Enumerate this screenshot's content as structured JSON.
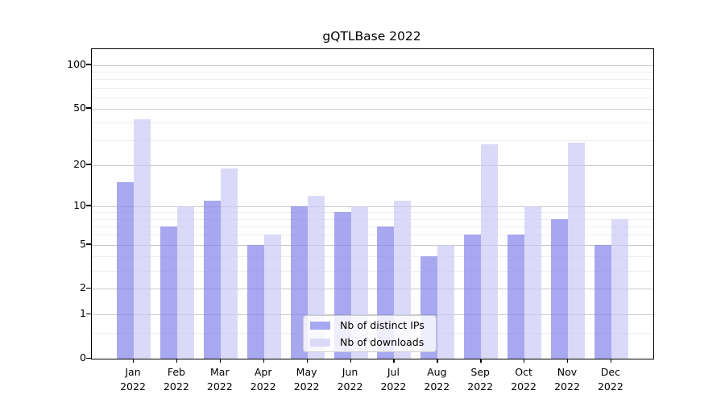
{
  "figure": {
    "title": "gQTLBase 2022"
  },
  "chart_data": {
    "type": "bar",
    "title": "gQTLBase 2022",
    "categories": [
      "Jan 2022",
      "Feb 2022",
      "Mar 2022",
      "Apr 2022",
      "May 2022",
      "Jun 2022",
      "Jul 2022",
      "Aug 2022",
      "Sep 2022",
      "Oct 2022",
      "Nov 2022",
      "Dec 2022"
    ],
    "month_short": [
      "Jan",
      "Feb",
      "Mar",
      "Apr",
      "May",
      "Jun",
      "Jul",
      "Aug",
      "Sep",
      "Oct",
      "Nov",
      "Dec"
    ],
    "year": "2022",
    "series": [
      {
        "name": "Nb of distinct IPs",
        "base_color": "#8383e9",
        "apparent_color": "#a8a8f0",
        "alpha": 0.7,
        "values": [
          15,
          7,
          11,
          5,
          10,
          9,
          7,
          4,
          6,
          6,
          8,
          5
        ]
      },
      {
        "name": "Nb of downloads",
        "base_color": "#cacaf5",
        "apparent_color": "#dadaf8",
        "alpha": 0.7,
        "values": [
          42,
          10,
          19,
          6,
          12,
          10,
          11,
          5,
          28,
          10,
          29,
          8
        ]
      }
    ],
    "yscale": "log1p",
    "ylim": [
      0,
      130
    ],
    "yticks_major": [
      0,
      1,
      2,
      5,
      10,
      20,
      50,
      100
    ],
    "yticks_minor": [
      0.5,
      3,
      4,
      6,
      7,
      8,
      9,
      30,
      40,
      60,
      70,
      80,
      90
    ],
    "grid": true,
    "legend_position": "lower center",
    "xlabel": "",
    "ylabel": ""
  }
}
